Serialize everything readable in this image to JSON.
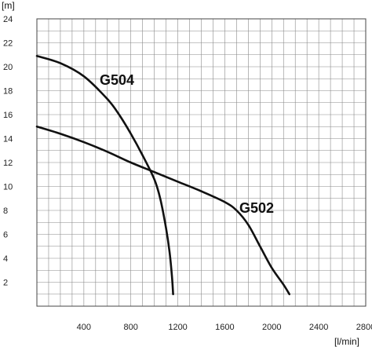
{
  "chart_data": {
    "type": "line",
    "title": "",
    "ylabel": "[m]",
    "xlabel": "[l/min]",
    "xlim": [
      0,
      2800
    ],
    "ylim": [
      0,
      24
    ],
    "x_ticks": [
      400,
      800,
      1200,
      1600,
      2000,
      2400,
      2800
    ],
    "y_ticks": [
      2,
      4,
      6,
      8,
      10,
      12,
      14,
      16,
      18,
      20,
      22,
      24
    ],
    "grid": true,
    "minor_grid_x_step": 100,
    "minor_grid_y_step": 1,
    "series": [
      {
        "name": "G504",
        "x": [
          0,
          200,
          400,
          600,
          700,
          800,
          900,
          1000,
          1050,
          1100,
          1130,
          1150,
          1160
        ],
        "y": [
          20.9,
          20.3,
          19.2,
          17.3,
          16.0,
          14.4,
          12.6,
          10.6,
          9.0,
          6.5,
          4.5,
          2.5,
          1.0
        ]
      },
      {
        "name": "G502",
        "x": [
          0,
          200,
          400,
          600,
          800,
          1000,
          1200,
          1400,
          1600,
          1700,
          1800,
          1900,
          2000,
          2100,
          2150
        ],
        "y": [
          15.0,
          14.4,
          13.7,
          12.9,
          12.0,
          11.2,
          10.4,
          9.6,
          8.7,
          8.0,
          6.8,
          5.0,
          3.2,
          1.8,
          1.0
        ]
      }
    ],
    "colors": {
      "curve": "#111111",
      "grid": "#8a8a8a",
      "axis": "#444444"
    }
  }
}
